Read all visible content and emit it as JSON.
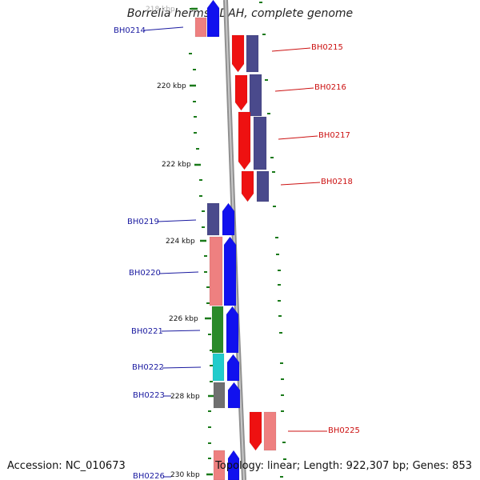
{
  "title": "Borrelia hermsii DAH, complete genome",
  "footer": {
    "accession": "Accession: NC_010673",
    "topology": "Topology: linear; Length: 922,307 bp; Genes: 853"
  },
  "colors": {
    "dark_blue": "#4a4a8c",
    "red": "#ee1111",
    "salmon": "#ee8080",
    "blue": "#1111ee",
    "green": "#2a8a2a",
    "cyan": "#22cccc",
    "gray": "#707070",
    "tick": "#1a7a1a",
    "backbone": "#909090",
    "left_label": "#1a1aa0",
    "right_label": "#cc1111"
  },
  "ruler_labels": [
    "218 kbp",
    "220 kbp",
    "222 kbp",
    "224 kbp",
    "226 kbp",
    "228 kbp",
    "230 kbp"
  ],
  "genes": [
    {
      "id": "BH0214",
      "side": "left"
    },
    {
      "id": "BH0215",
      "side": "right"
    },
    {
      "id": "BH0216",
      "side": "right"
    },
    {
      "id": "BH0217",
      "side": "right"
    },
    {
      "id": "BH0218",
      "side": "right"
    },
    {
      "id": "BH0219",
      "side": "left"
    },
    {
      "id": "BH0220",
      "side": "left"
    },
    {
      "id": "BH0221",
      "side": "left"
    },
    {
      "id": "BH0222",
      "side": "left"
    },
    {
      "id": "BH0223",
      "side": "left"
    },
    {
      "id": "BH0225",
      "side": "right"
    },
    {
      "id": "BH0226",
      "side": "left"
    }
  ]
}
